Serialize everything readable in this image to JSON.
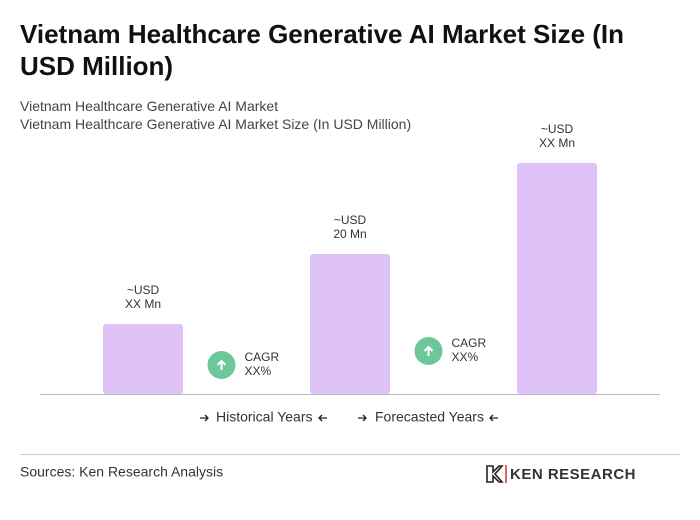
{
  "chart_data": {
    "type": "bar",
    "title": "Vietnam Healthcare Generative AI Market Size (In USD Million)",
    "subtitles": [
      "Vietnam Healthcare Generative AI Market",
      "Vietnam Healthcare Generative AI Market Size (In USD Million)"
    ],
    "categories": [
      null,
      null,
      null
    ],
    "values": [
      10,
      20,
      33
    ],
    "value_labels": [
      "~USD XX Mn",
      "~USD 20 Mn",
      "~USD XX Mn"
    ],
    "color": "#dfc3f8",
    "annotations": [
      "CAGR XX%",
      "CAGR XX%"
    ],
    "annotation_color": "#6cc79a",
    "legend": [
      "Historical Years",
      "Forecasted Years"
    ],
    "source": "Sources: Ken Research Analysis",
    "brand": "KEN RESEARCH"
  }
}
